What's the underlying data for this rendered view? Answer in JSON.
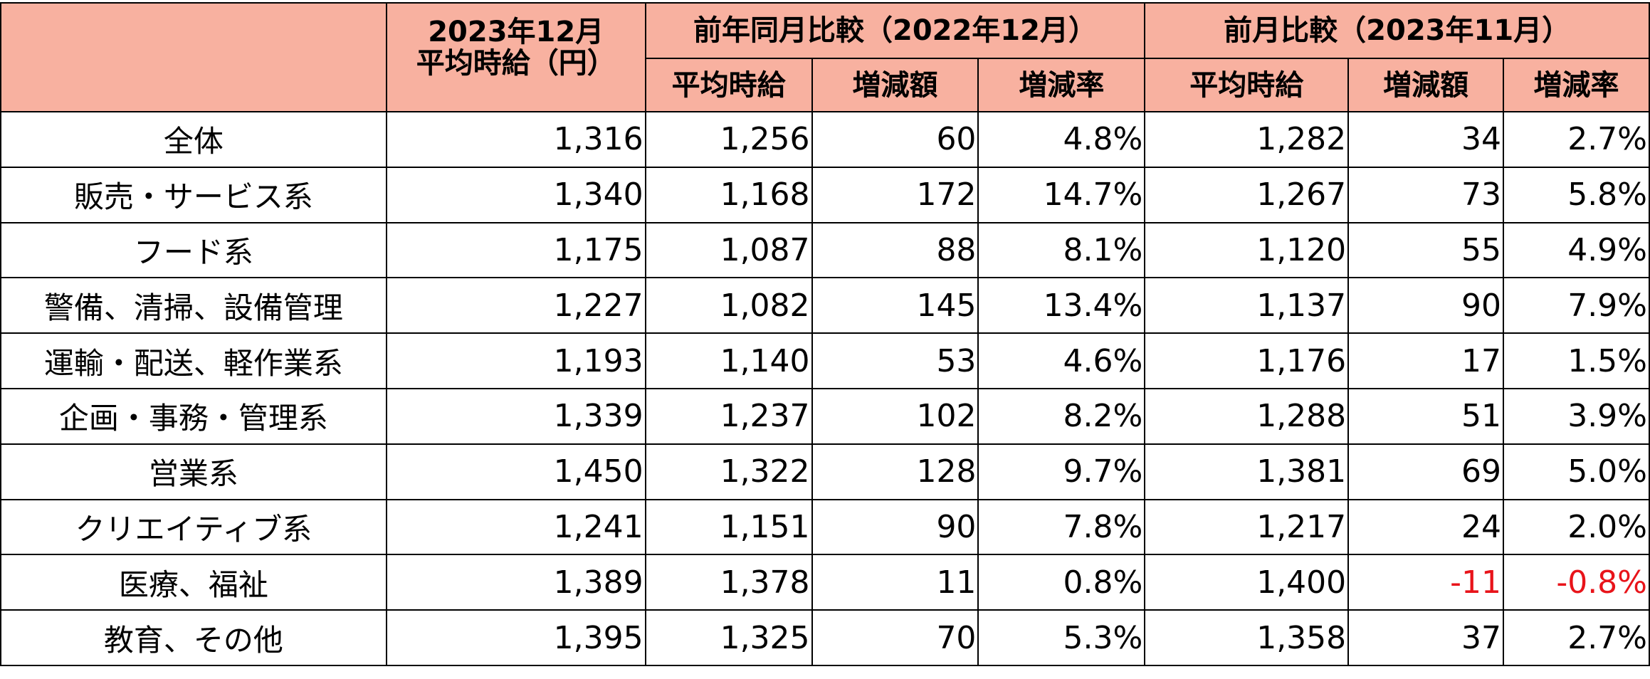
{
  "header": {
    "col_main_line1": "2023年12月",
    "col_main_line2": "平均時給（円）",
    "group_yoy": "前年同月比較（2022年12月）",
    "group_mom": "前月比較（2023年11月）",
    "sub_avg": "平均時給",
    "sub_diff": "増減額",
    "sub_rate": "増減率"
  },
  "rows": [
    {
      "category": "全体",
      "current": "1,316",
      "yoy_avg": "1,256",
      "yoy_diff": "60",
      "yoy_rate": "4.8%",
      "mom_avg": "1,282",
      "mom_diff": "34",
      "mom_rate": "2.7%"
    },
    {
      "category": "販売・サービス系",
      "current": "1,340",
      "yoy_avg": "1,168",
      "yoy_diff": "172",
      "yoy_rate": "14.7%",
      "mom_avg": "1,267",
      "mom_diff": "73",
      "mom_rate": "5.8%"
    },
    {
      "category": "フード系",
      "current": "1,175",
      "yoy_avg": "1,087",
      "yoy_diff": "88",
      "yoy_rate": "8.1%",
      "mom_avg": "1,120",
      "mom_diff": "55",
      "mom_rate": "4.9%"
    },
    {
      "category": "警備、清掃、設備管理",
      "current": "1,227",
      "yoy_avg": "1,082",
      "yoy_diff": "145",
      "yoy_rate": "13.4%",
      "mom_avg": "1,137",
      "mom_diff": "90",
      "mom_rate": "7.9%"
    },
    {
      "category": "運輸・配送、軽作業系",
      "current": "1,193",
      "yoy_avg": "1,140",
      "yoy_diff": "53",
      "yoy_rate": "4.6%",
      "mom_avg": "1,176",
      "mom_diff": "17",
      "mom_rate": "1.5%"
    },
    {
      "category": "企画・事務・管理系",
      "current": "1,339",
      "yoy_avg": "1,237",
      "yoy_diff": "102",
      "yoy_rate": "8.2%",
      "mom_avg": "1,288",
      "mom_diff": "51",
      "mom_rate": "3.9%"
    },
    {
      "category": "営業系",
      "current": "1,450",
      "yoy_avg": "1,322",
      "yoy_diff": "128",
      "yoy_rate": "9.7%",
      "mom_avg": "1,381",
      "mom_diff": "69",
      "mom_rate": "5.0%"
    },
    {
      "category": "クリエイティブ系",
      "current": "1,241",
      "yoy_avg": "1,151",
      "yoy_diff": "90",
      "yoy_rate": "7.8%",
      "mom_avg": "1,217",
      "mom_diff": "24",
      "mom_rate": "2.0%"
    },
    {
      "category": "医療、福祉",
      "current": "1,389",
      "yoy_avg": "1,378",
      "yoy_diff": "11",
      "yoy_rate": "0.8%",
      "mom_avg": "1,400",
      "mom_diff": "-11",
      "mom_rate": "-0.8%"
    },
    {
      "category": "教育、その他",
      "current": "1,395",
      "yoy_avg": "1,325",
      "yoy_diff": "70",
      "yoy_rate": "5.3%",
      "mom_avg": "1,358",
      "mom_diff": "37",
      "mom_rate": "2.7%"
    }
  ],
  "colors": {
    "header_bg": "#F8B1A0",
    "negative_text": "#E8141A",
    "border": "#000000"
  }
}
